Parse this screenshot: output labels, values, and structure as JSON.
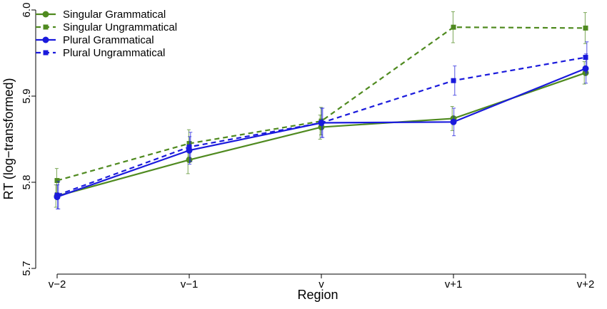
{
  "chart_data": {
    "type": "line",
    "title": "",
    "xlabel": "Region",
    "ylabel": "RT (log−transformed)",
    "categories": [
      "v−2",
      "v−1",
      "v",
      "v+1",
      "v+2"
    ],
    "ylim": [
      5.7,
      6.0
    ],
    "yticks": [
      "5.7",
      "5.8",
      "5.9",
      "6.0"
    ],
    "grid": false,
    "legend_position": "top-left",
    "series": [
      {
        "name": "Singular Grammatical",
        "color": "#4f8a1f",
        "line": "solid",
        "marker": "circle",
        "values": [
          5.784,
          5.826,
          5.864,
          5.874,
          5.927
        ],
        "errors": [
          0.013,
          0.016,
          0.014,
          0.014,
          0.013
        ]
      },
      {
        "name": "Singular Ungrammatical",
        "color": "#4f8a1f",
        "line": "dashed",
        "marker": "square",
        "values": [
          5.802,
          5.845,
          5.871,
          5.98,
          5.979
        ],
        "errors": [
          0.014,
          0.016,
          0.016,
          0.018,
          0.018
        ]
      },
      {
        "name": "Plural Grammatical",
        "color": "#1a1adc",
        "line": "solid",
        "marker": "circle",
        "values": [
          5.783,
          5.837,
          5.869,
          5.87,
          5.932
        ],
        "errors": [
          0.014,
          0.016,
          0.017,
          0.016,
          0.017
        ]
      },
      {
        "name": "Plural Ungrammatical",
        "color": "#1a1adc",
        "line": "dashed",
        "marker": "square",
        "values": [
          5.785,
          5.841,
          5.869,
          5.918,
          5.945
        ],
        "errors": [
          0.016,
          0.017,
          0.017,
          0.017,
          0.018
        ]
      }
    ]
  }
}
